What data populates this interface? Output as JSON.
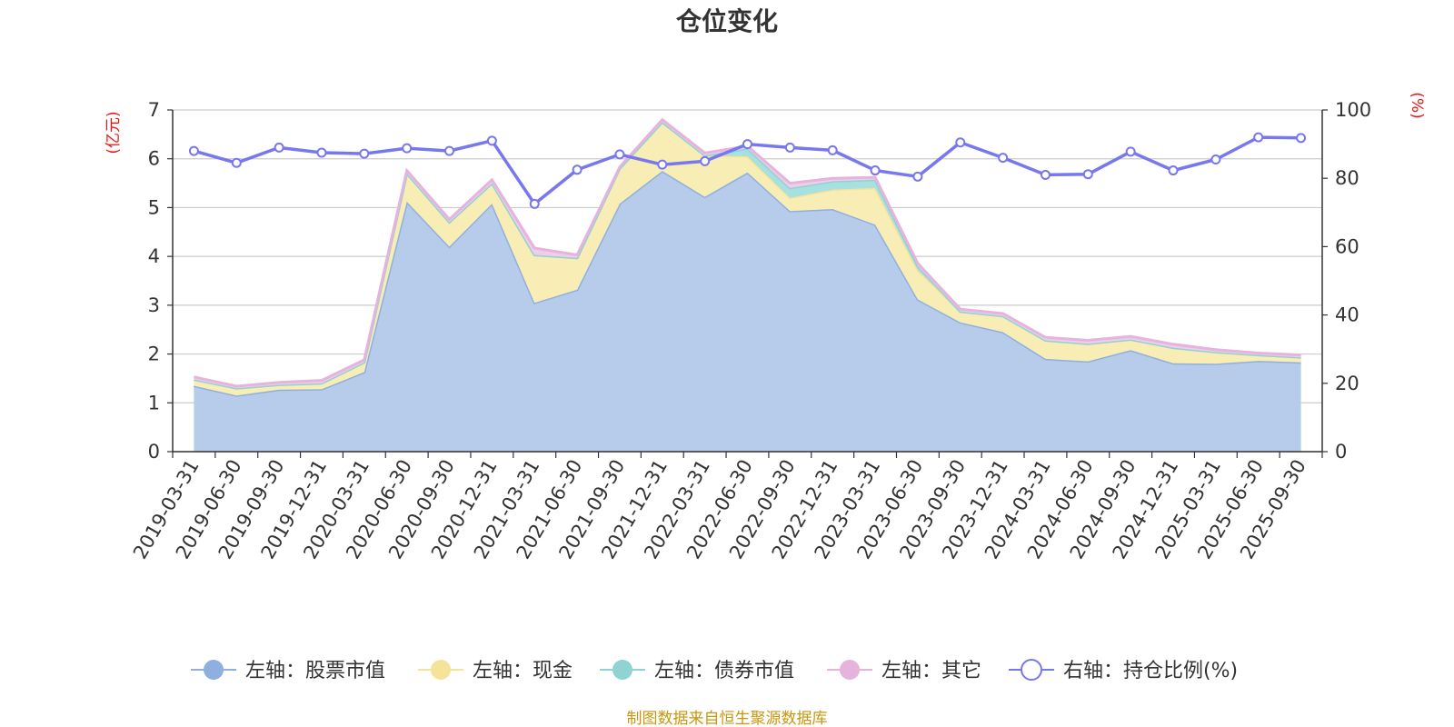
{
  "chart_data": {
    "type": "area",
    "title": "仓位变化",
    "left_unit": "(亿元)",
    "right_unit": "(%)",
    "source": "制图数据来自恒生聚源数据库",
    "categories": [
      "2019-03-31",
      "2019-06-30",
      "2019-09-30",
      "2019-12-31",
      "2020-03-31",
      "2020-06-30",
      "2020-09-30",
      "2020-12-31",
      "2021-03-31",
      "2021-06-30",
      "2021-09-30",
      "2021-12-31",
      "2022-03-31",
      "2022-06-30",
      "2022-09-30",
      "2022-12-31",
      "2023-03-31",
      "2023-06-30",
      "2023-09-30",
      "2023-12-31",
      "2024-03-31",
      "2024-06-30",
      "2024-09-30",
      "2024-12-31",
      "2025-03-31",
      "2025-06-30",
      "2025-09-30"
    ],
    "left_axis": {
      "min": 0,
      "max": 7,
      "ticks": [
        "0",
        "1",
        "2",
        "3",
        "4",
        "5",
        "6",
        "7"
      ]
    },
    "right_axis": {
      "min": 0,
      "max": 100,
      "ticks": [
        "0",
        "20",
        "40",
        "60",
        "80",
        "100"
      ]
    },
    "series": [
      {
        "name": "左轴：股票市值",
        "axis": "left",
        "kind": "stacked-area",
        "color": "#8fb0df",
        "fill": "#b7cbea",
        "values": [
          1.35,
          1.15,
          1.27,
          1.28,
          1.63,
          5.12,
          4.2,
          5.08,
          3.05,
          3.32,
          5.08,
          5.75,
          5.22,
          5.72,
          4.93,
          4.97,
          4.65,
          3.12,
          2.65,
          2.45,
          1.9,
          1.85,
          2.08,
          1.81,
          1.8,
          1.86,
          1.83
        ]
      },
      {
        "name": "左轴：现金",
        "axis": "left",
        "kind": "stacked-area",
        "color": "#f5e39a",
        "fill": "#f8edb5",
        "values": [
          0.13,
          0.15,
          0.1,
          0.12,
          0.2,
          0.58,
          0.5,
          0.42,
          0.98,
          0.65,
          0.72,
          1.0,
          0.85,
          0.33,
          0.27,
          0.4,
          0.75,
          0.6,
          0.22,
          0.33,
          0.38,
          0.36,
          0.22,
          0.32,
          0.24,
          0.12,
          0.1
        ]
      },
      {
        "name": "左轴：债券市值",
        "axis": "left",
        "kind": "stacked-area",
        "color": "#8fd3d3",
        "fill": "#a8dfdf",
        "values": [
          0,
          0,
          0,
          0,
          0,
          0,
          0,
          0,
          0,
          0,
          0,
          0,
          0,
          0.16,
          0.2,
          0.17,
          0.17,
          0.08,
          0,
          0,
          0,
          0,
          0,
          0,
          0,
          0,
          0
        ]
      },
      {
        "name": "左轴：其它",
        "axis": "left",
        "kind": "stacked-area",
        "color": "#e6b3dc",
        "fill": "#f0cdea",
        "values": [
          0.05,
          0.04,
          0.05,
          0.06,
          0.05,
          0.06,
          0.06,
          0.07,
          0.14,
          0.06,
          0.03,
          0.05,
          0.05,
          0.05,
          0.1,
          0.06,
          0.05,
          0.06,
          0.05,
          0.05,
          0.06,
          0.07,
          0.06,
          0.07,
          0.05,
          0.04,
          0.05
        ]
      },
      {
        "name": "右轴：持仓比例(%)",
        "axis": "right",
        "kind": "line",
        "color": "#7777ee",
        "values": [
          88,
          84.5,
          89,
          87.5,
          87.2,
          88.8,
          88,
          91,
          72.5,
          82.5,
          87,
          84,
          85,
          90,
          89,
          88.2,
          82.3,
          80.5,
          90.5,
          86,
          81,
          81.2,
          87.8,
          82.3,
          85.5,
          92,
          91.8
        ]
      }
    ]
  }
}
